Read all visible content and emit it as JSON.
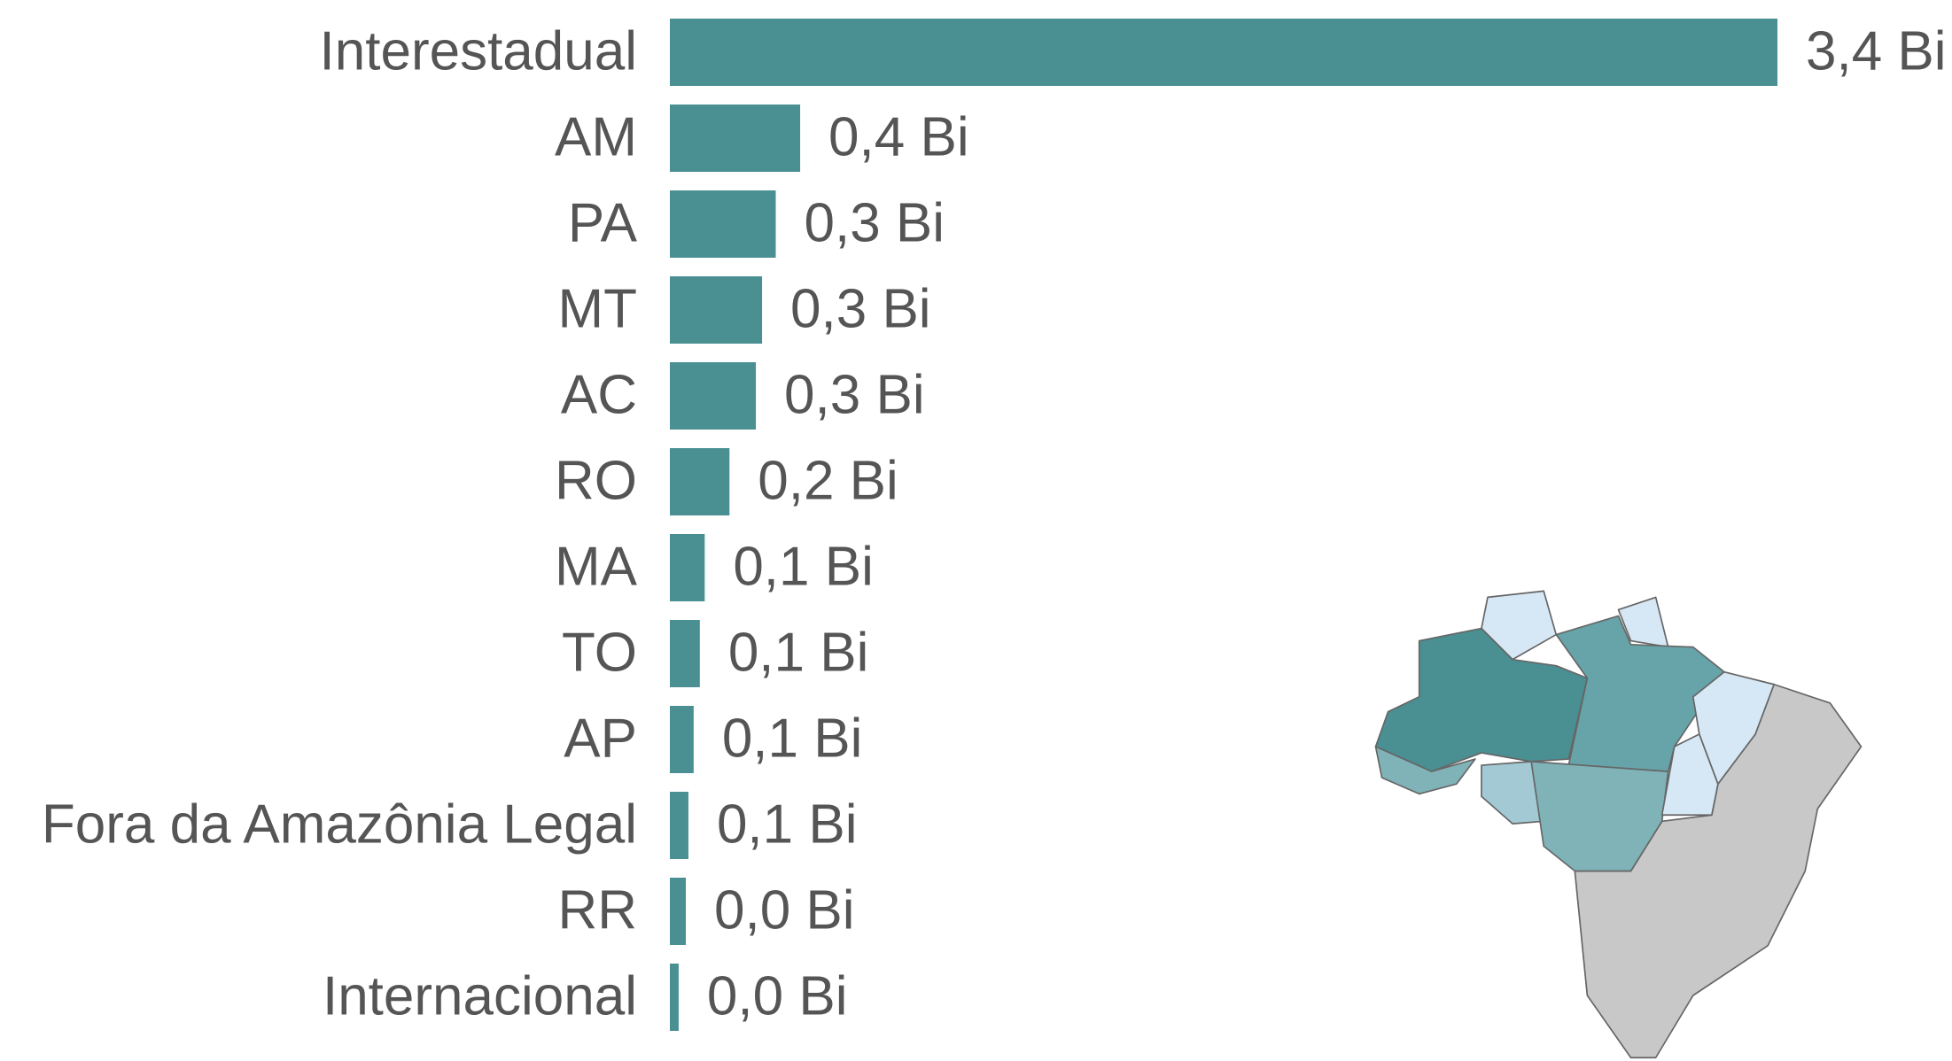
{
  "chart_data": {
    "type": "bar",
    "orientation": "horizontal",
    "color": "#4a8f92",
    "categories": [
      "Interestadual",
      "AM",
      "PA",
      "MT",
      "AC",
      "RO",
      "MA",
      "TO",
      "AP",
      "Fora da Amazônia Legal",
      "RR",
      "Internacional"
    ],
    "values": [
      3.4,
      0.4,
      0.325,
      0.283,
      0.264,
      0.183,
      0.107,
      0.092,
      0.073,
      0.057,
      0.049,
      0.027
    ],
    "value_labels": [
      "3,4 Bi",
      "0,4 Bi",
      "0,3 Bi",
      "0,3 Bi",
      "0,3 Bi",
      "0,2 Bi",
      "0,1 Bi",
      "0,1 Bi",
      "0,1 Bi",
      "0,1 Bi",
      "0,0 Bi",
      "0,0 Bi"
    ]
  }
}
